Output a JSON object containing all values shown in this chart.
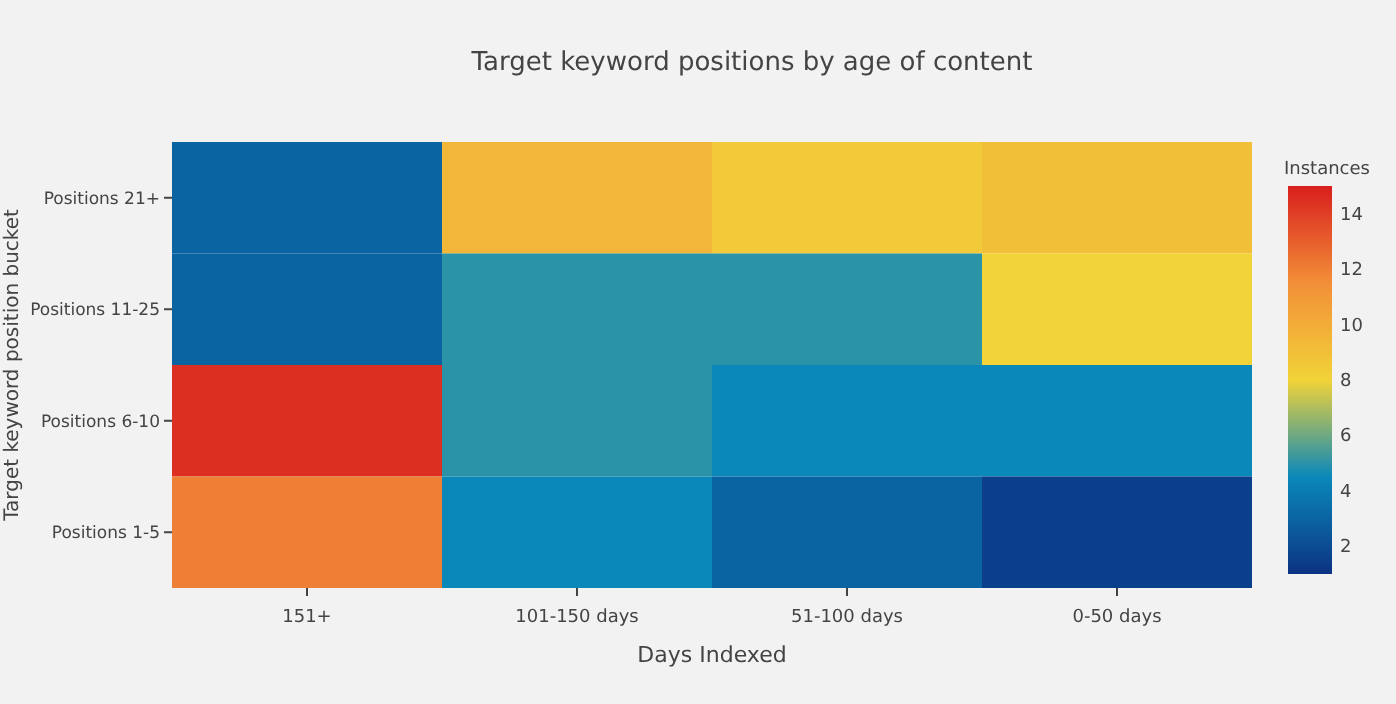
{
  "chart_data": {
    "type": "heatmap",
    "title": "Target keyword positions by age of content",
    "xlabel": "Days Indexed",
    "ylabel": "Target keyword position bucket",
    "clabel": "Instances",
    "categories": [
      "151+",
      "101-150 days",
      "51-100 days",
      "0-50 days"
    ],
    "y_categories": [
      "Positions 21+",
      "Positions 11-25",
      "Positions 6-10",
      "Positions 1-5"
    ],
    "cells": [
      [
        3,
        9.5,
        8.5,
        9
      ],
      [
        3,
        5,
        5,
        8
      ],
      [
        14.5,
        5,
        4.5,
        4.5
      ],
      [
        12,
        4.5,
        3,
        1.5
      ]
    ],
    "clim": [
      1,
      15
    ],
    "cticks": [
      2,
      4,
      6,
      8,
      10,
      12,
      14
    ]
  }
}
